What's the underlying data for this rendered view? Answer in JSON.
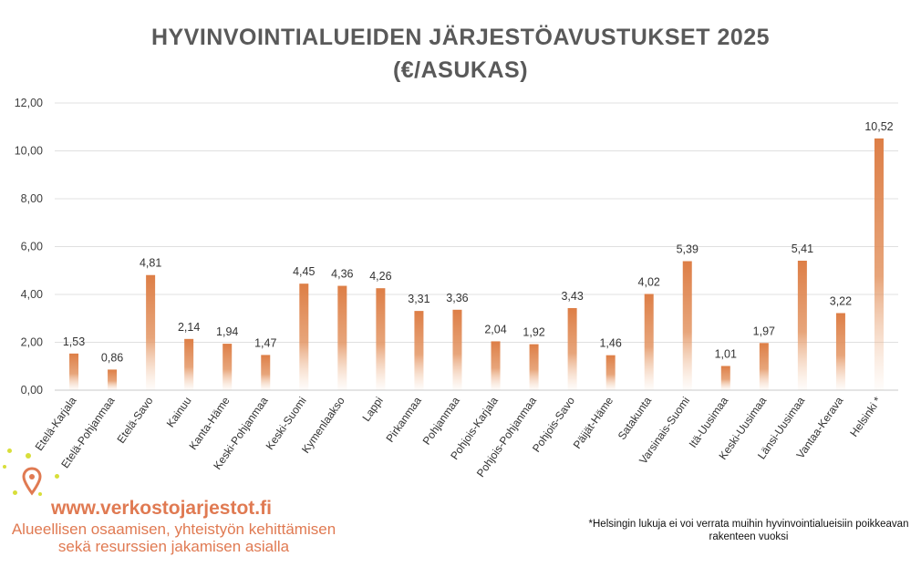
{
  "title_line1": "HYVINVOINTIALUEIDEN JÄRJESTÖAVUSTUKSET 2025",
  "title_line2": "(€/ASUKAS)",
  "chart_data": {
    "type": "bar",
    "title": "HYVINVOINTIALUEIDEN JÄRJESTÖAVUSTUKSET 2025 (€/ASUKAS)",
    "categories": [
      "Etelä-Karjala",
      "Etelä-Pohjanmaa",
      "Etelä-Savo",
      "Kainuu",
      "Kanta-Häme",
      "Keski-Pohjanmaa",
      "Keski-Suomi",
      "Kymenlaakso",
      "Lappi",
      "Pirkanmaa",
      "Pohjanmaa",
      "Pohjois-Karjala",
      "Pohjois-Pohjanmaa",
      "Pohjois-Savo",
      "Päijät-Häme",
      "Satakunta",
      "Varsinais-Suomi",
      "Itä-Uusimaa",
      "Keski-Uusimaa",
      "Länsi-Uusimaa",
      "Vantaa-Kerava",
      "Helsinki *"
    ],
    "values": [
      1.53,
      0.86,
      4.81,
      2.14,
      1.94,
      1.47,
      4.45,
      4.36,
      4.26,
      3.31,
      3.36,
      2.04,
      1.92,
      3.43,
      1.46,
      4.02,
      5.39,
      1.01,
      1.97,
      5.41,
      3.22,
      10.52
    ],
    "value_labels": [
      "1,53",
      "0,86",
      "4,81",
      "2,14",
      "1,94",
      "1,47",
      "4,45",
      "4,36",
      "4,26",
      "3,31",
      "3,36",
      "2,04",
      "1,92",
      "3,43",
      "1,46",
      "4,02",
      "5,39",
      "1,01",
      "1,97",
      "5,41",
      "3,22",
      "10,52"
    ],
    "yticks": [
      0,
      2,
      4,
      6,
      8,
      10,
      12
    ],
    "ytick_labels": [
      "0,00",
      "2,00",
      "4,00",
      "6,00",
      "8,00",
      "10,00",
      "12,00"
    ],
    "ylim": [
      0,
      12
    ],
    "xlabel": "",
    "ylabel": "",
    "grid": true,
    "bar_color": "#dd7e46"
  },
  "logo": {
    "website": "www.verkostojarjestot.fi",
    "tagline": "Alueellisen osaamisen, yhteistyön kehittämisen sekä resurssien jakamisen asialla",
    "accent_color": "#e07a52",
    "dot_color": "#d8de3a"
  },
  "footnote": "*Helsingin lukuja ei voi verrata muihin hyvinvointialueisiin poikkeavan rakenteen vuoksi"
}
